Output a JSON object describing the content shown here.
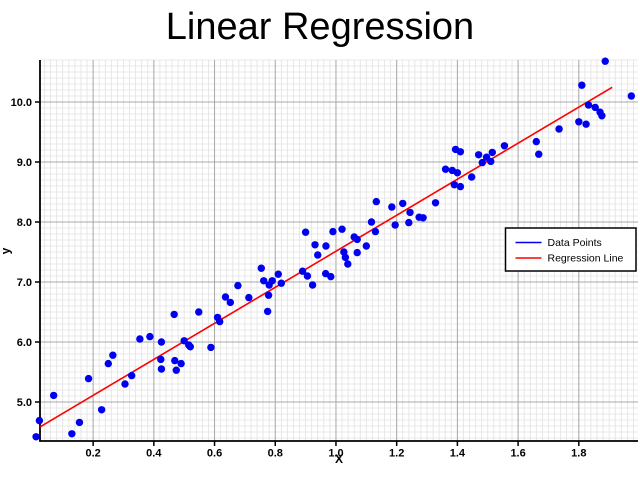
{
  "title": "Linear Regression",
  "chart_data": {
    "type": "scatter",
    "title": "Linear Regression",
    "xlabel": "X",
    "ylabel": "y",
    "xlim": [
      0.025,
      1.995
    ],
    "ylim": [
      4.35,
      10.7
    ],
    "grid": "major+minor",
    "x_ticks": {
      "values": [
        0.2,
        0.4,
        0.6,
        0.8,
        1.0,
        1.2,
        1.4,
        1.6,
        1.8
      ],
      "labels": [
        "0.2",
        "0.4",
        "0.6",
        "0.8",
        "1.0",
        "1.2",
        "1.4",
        "1.6",
        "1.8"
      ]
    },
    "y_ticks": {
      "values": [
        5.0,
        6.0,
        7.0,
        8.0,
        9.0,
        10.0
      ],
      "labels": [
        "5.0",
        "6.0",
        "7.0",
        "8.0",
        "9.0",
        "10.0"
      ]
    },
    "x_minor_step": 0.02,
    "y_minor_step": 0.1,
    "legend": {
      "entries": [
        {
          "label": "Data Points",
          "color": "#0000EE",
          "sample": "line"
        },
        {
          "label": "Regression Line",
          "color": "#FF0000",
          "sample": "line"
        }
      ]
    },
    "series": [
      {
        "name": "Data Points",
        "type": "scatter",
        "color": "#0000EE",
        "marker": "circle",
        "points": [
          [
            0.012,
            4.42
          ],
          [
            0.023,
            4.69
          ],
          [
            0.07,
            5.11
          ],
          [
            0.13,
            4.47
          ],
          [
            0.155,
            4.66
          ],
          [
            0.185,
            5.39
          ],
          [
            0.228,
            4.87
          ],
          [
            0.25,
            5.64
          ],
          [
            0.265,
            5.78
          ],
          [
            0.305,
            5.3
          ],
          [
            0.327,
            5.44
          ],
          [
            0.354,
            6.05
          ],
          [
            0.387,
            6.09
          ],
          [
            0.423,
            5.71
          ],
          [
            0.425,
            5.55
          ],
          [
            0.425,
            6.0
          ],
          [
            0.467,
            6.46
          ],
          [
            0.469,
            5.69
          ],
          [
            0.474,
            5.53
          ],
          [
            0.49,
            5.64
          ],
          [
            0.5,
            6.02
          ],
          [
            0.515,
            5.95
          ],
          [
            0.52,
            5.92
          ],
          [
            0.548,
            6.5
          ],
          [
            0.588,
            5.91
          ],
          [
            0.61,
            6.41
          ],
          [
            0.617,
            6.34
          ],
          [
            0.636,
            6.75
          ],
          [
            0.652,
            6.66
          ],
          [
            0.677,
            6.94
          ],
          [
            0.713,
            6.74
          ],
          [
            0.754,
            7.23
          ],
          [
            0.762,
            7.02
          ],
          [
            0.775,
            6.51
          ],
          [
            0.778,
            6.78
          ],
          [
            0.78,
            6.95
          ],
          [
            0.79,
            7.02
          ],
          [
            0.81,
            7.13
          ],
          [
            0.82,
            6.98
          ],
          [
            0.89,
            7.18
          ],
          [
            0.9,
            7.83
          ],
          [
            0.906,
            7.1
          ],
          [
            0.923,
            6.95
          ],
          [
            0.931,
            7.62
          ],
          [
            0.94,
            7.45
          ],
          [
            0.966,
            7.14
          ],
          [
            0.967,
            7.6
          ],
          [
            0.983,
            7.09
          ],
          [
            0.99,
            7.84
          ],
          [
            1.02,
            7.88
          ],
          [
            1.026,
            7.5
          ],
          [
            1.031,
            7.41
          ],
          [
            1.039,
            7.3
          ],
          [
            1.06,
            7.75
          ],
          [
            1.07,
            7.71
          ],
          [
            1.07,
            7.49
          ],
          [
            1.1,
            7.6
          ],
          [
            1.117,
            8.0
          ],
          [
            1.13,
            7.84
          ],
          [
            1.133,
            8.34
          ],
          [
            1.184,
            8.25
          ],
          [
            1.195,
            7.95
          ],
          [
            1.22,
            8.31
          ],
          [
            1.24,
            7.99
          ],
          [
            1.244,
            8.16
          ],
          [
            1.274,
            8.08
          ],
          [
            1.287,
            8.07
          ],
          [
            1.328,
            8.32
          ],
          [
            1.361,
            8.88
          ],
          [
            1.383,
            8.86
          ],
          [
            1.39,
            8.62
          ],
          [
            1.394,
            9.21
          ],
          [
            1.4,
            8.82
          ],
          [
            1.41,
            9.17
          ],
          [
            1.41,
            8.59
          ],
          [
            1.447,
            8.75
          ],
          [
            1.47,
            9.12
          ],
          [
            1.482,
            8.99
          ],
          [
            1.496,
            9.08
          ],
          [
            1.51,
            9.01
          ],
          [
            1.515,
            9.16
          ],
          [
            1.555,
            9.27
          ],
          [
            1.66,
            9.34
          ],
          [
            1.668,
            9.13
          ],
          [
            1.735,
            9.55
          ],
          [
            1.8,
            9.67
          ],
          [
            1.81,
            10.28
          ],
          [
            1.824,
            9.63
          ],
          [
            1.832,
            9.95
          ],
          [
            1.854,
            9.91
          ],
          [
            1.87,
            9.83
          ],
          [
            1.876,
            9.77
          ],
          [
            1.887,
            10.68
          ],
          [
            1.973,
            10.1
          ]
        ]
      },
      {
        "name": "Regression Line",
        "type": "line",
        "color": "#FF0000",
        "points": [
          [
            0.025,
            4.585
          ],
          [
            1.91,
            10.245
          ]
        ]
      }
    ]
  },
  "colors": {
    "point": "#0000EE",
    "regression": "#FF0000",
    "major_grid": "#a8a8a8",
    "minor_grid": "#e2e2e2",
    "axis": "#000000",
    "background": "#FFFFFF",
    "legend_border": "#000000"
  }
}
